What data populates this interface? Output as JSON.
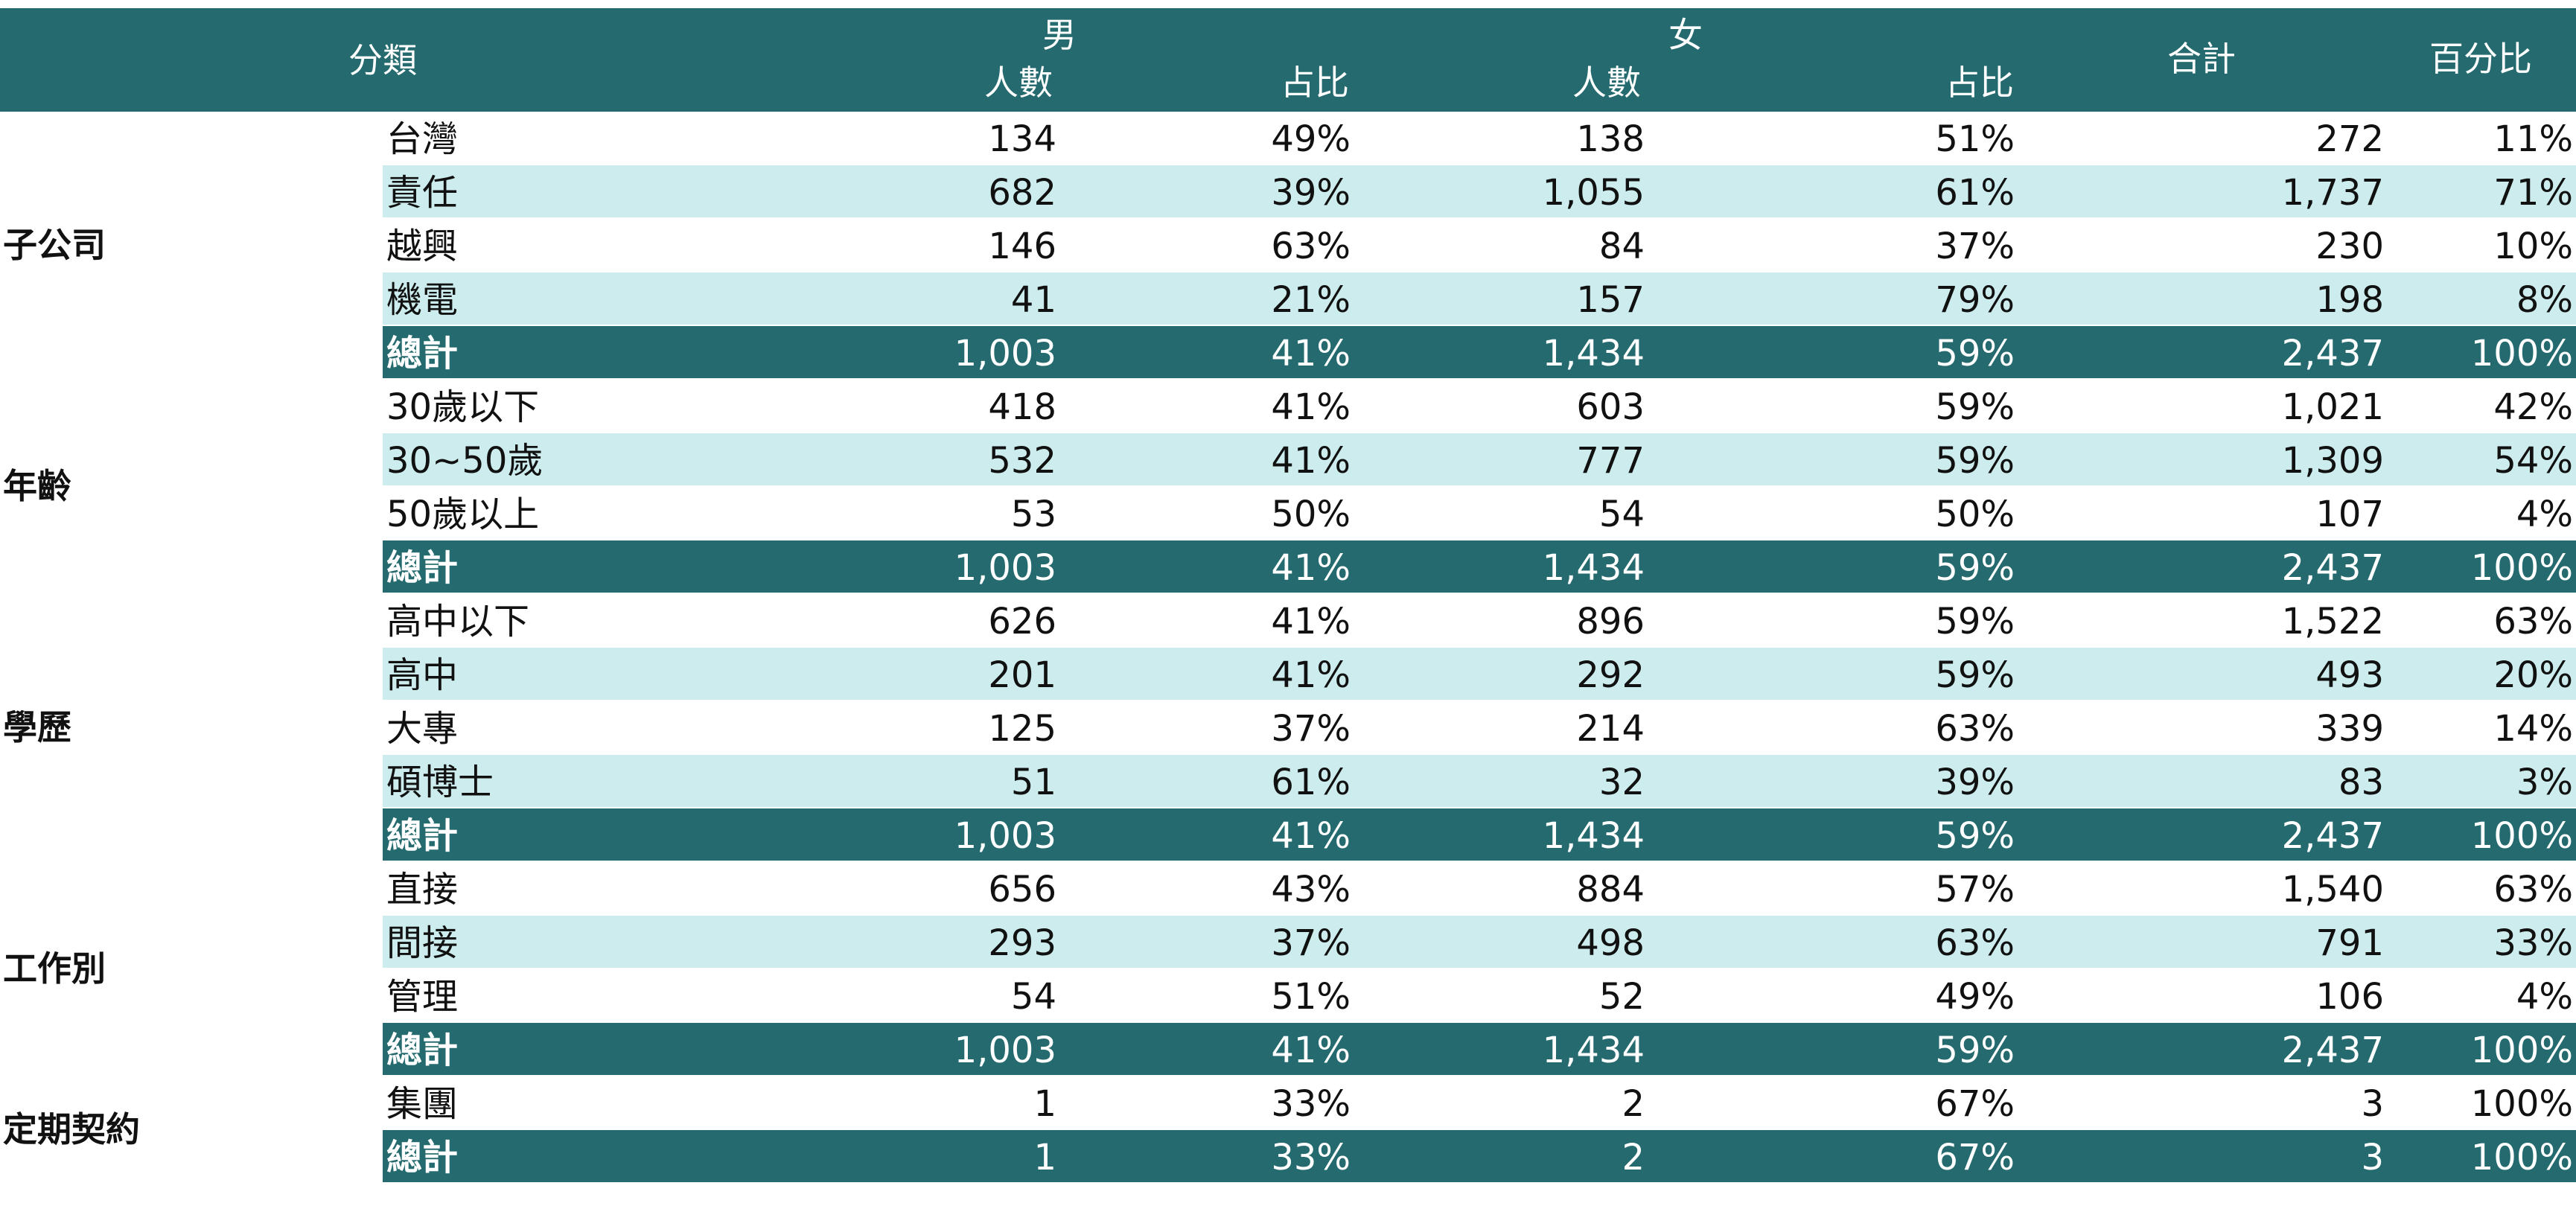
{
  "table": {
    "header": {
      "category": "分類",
      "male": "男",
      "female": "女",
      "male_count": "人數",
      "male_ratio": "占比",
      "female_count": "人數",
      "female_ratio": "占比",
      "total": "合計",
      "percent": "百分比"
    },
    "groups": [
      {
        "name": "子公司",
        "rows": [
          [
            "台灣",
            "134",
            "49%",
            "138",
            "51%",
            "272",
            "11%"
          ],
          [
            "責任",
            "682",
            "39%",
            "1,055",
            "61%",
            "1,737",
            "71%"
          ],
          [
            "越興",
            "146",
            "63%",
            "84",
            "37%",
            "230",
            "10%"
          ],
          [
            "機電",
            "41",
            "21%",
            "157",
            "79%",
            "198",
            "8%"
          ]
        ],
        "total": [
          "總計",
          "1,003",
          "41%",
          "1,434",
          "59%",
          "2,437",
          "100%"
        ]
      },
      {
        "name": "年齡",
        "rows": [
          [
            "30歲以下",
            "418",
            "41%",
            "603",
            "59%",
            "1,021",
            "42%"
          ],
          [
            "30~50歲",
            "532",
            "41%",
            "777",
            "59%",
            "1,309",
            "54%"
          ],
          [
            "50歲以上",
            "53",
            "50%",
            "54",
            "50%",
            "107",
            "4%"
          ]
        ],
        "total": [
          "總計",
          "1,003",
          "41%",
          "1,434",
          "59%",
          "2,437",
          "100%"
        ]
      },
      {
        "name": "學歷",
        "rows": [
          [
            "高中以下",
            "626",
            "41%",
            "896",
            "59%",
            "1,522",
            "63%"
          ],
          [
            "高中",
            "201",
            "41%",
            "292",
            "59%",
            "493",
            "20%"
          ],
          [
            "大專",
            "125",
            "37%",
            "214",
            "63%",
            "339",
            "14%"
          ],
          [
            "碩博士",
            "51",
            "61%",
            "32",
            "39%",
            "83",
            "3%"
          ]
        ],
        "total": [
          "總計",
          "1,003",
          "41%",
          "1,434",
          "59%",
          "2,437",
          "100%"
        ]
      },
      {
        "name": "工作別",
        "rows": [
          [
            "直接",
            "656",
            "43%",
            "884",
            "57%",
            "1,540",
            "63%"
          ],
          [
            "間接",
            "293",
            "37%",
            "498",
            "63%",
            "791",
            "33%"
          ],
          [
            "管理",
            "54",
            "51%",
            "52",
            "49%",
            "106",
            "4%"
          ]
        ],
        "total": [
          "總計",
          "1,003",
          "41%",
          "1,434",
          "59%",
          "2,437",
          "100%"
        ]
      },
      {
        "name": "定期契約",
        "rows": [
          [
            "集團",
            "1",
            "33%",
            "2",
            "67%",
            "3",
            "100%"
          ]
        ],
        "total": [
          "總計",
          "1",
          "33%",
          "2",
          "67%",
          "3",
          "100%"
        ]
      }
    ]
  }
}
